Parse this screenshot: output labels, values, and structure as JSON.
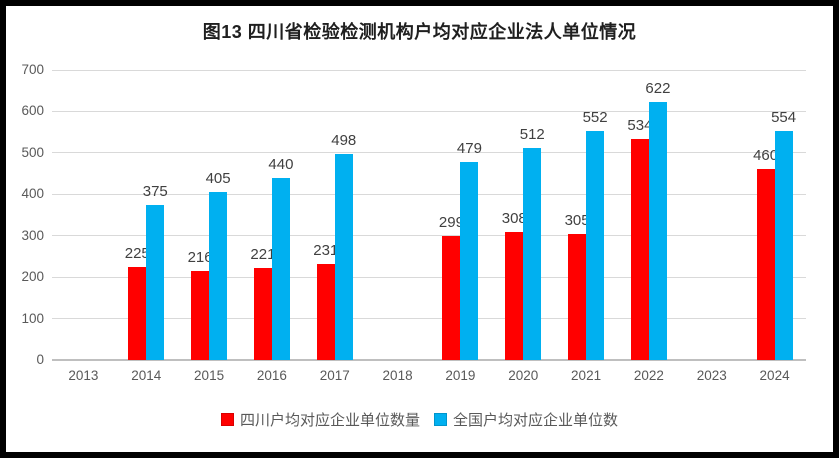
{
  "title": "图13 四川省检验检测机构户均对应企业法人单位情况",
  "chart_data": {
    "type": "bar",
    "title": "图13 四川省检验检测机构户均对应企业法人单位情况",
    "categories": [
      "2013",
      "2014",
      "2015",
      "2016",
      "2017",
      "2018",
      "2019",
      "2020",
      "2021",
      "2022",
      "2023",
      "2024"
    ],
    "series": [
      {
        "name": "四川户均对应企业单位数量",
        "color": "#ff0000",
        "values": [
          null,
          225,
          216,
          221,
          231,
          null,
          299,
          308,
          305,
          534,
          null,
          460
        ]
      },
      {
        "name": "全国户均对应企业单位数",
        "color": "#00b0f0",
        "values": [
          null,
          375,
          405,
          440,
          498,
          null,
          479,
          512,
          552,
          622,
          null,
          554
        ]
      }
    ],
    "xlabel": "",
    "ylabel": "",
    "ylim": [
      0,
      700
    ],
    "ytick_step": 100,
    "ytick_labels": [
      "0",
      "100",
      "200",
      "300",
      "400",
      "500",
      "600",
      "700"
    ],
    "grid": true,
    "data_labels": true,
    "legend_position": "bottom"
  },
  "colors": {
    "gridline": "#d9d9d9",
    "axis_line": "#bfbfbf",
    "tick_label": "#595959",
    "data_label": "#404040",
    "title_text": "#1f1f1f",
    "frame_border": "#000000",
    "background": "#ffffff"
  }
}
